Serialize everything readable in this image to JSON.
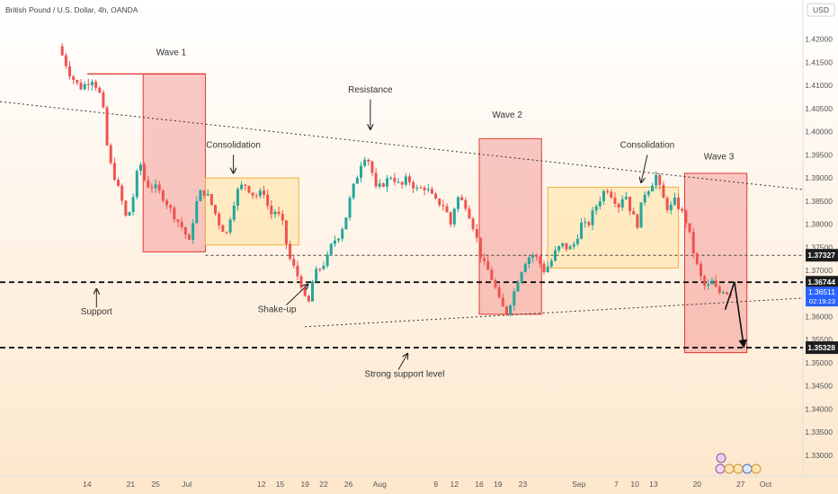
{
  "header": {
    "title": "British Pound / U.S. Dollar, 4h, OANDA",
    "currency": "USD"
  },
  "colors": {
    "bg_top": "#ffffff",
    "bg_bottom": "#fde7cc",
    "up": "#26a69a",
    "down": "#ef5350",
    "red_zone_fill": "#f08080",
    "red_zone_stroke": "#e53935",
    "orange_zone_fill": "#ffe0a0",
    "orange_zone_stroke": "#f5b041",
    "price_label_bg": "#1e1e1e",
    "current_price_bg": "#2962ff"
  },
  "chart_data": {
    "type": "candlestick",
    "instrument": "GBPUSD",
    "timeframe": "4h",
    "y_axis": {
      "range": [
        1.3255,
        1.4285
      ],
      "ticks": [
        "1.42000",
        "1.41500",
        "1.41000",
        "1.40500",
        "1.40000",
        "1.39500",
        "1.39000",
        "1.38500",
        "1.38000",
        "1.37500",
        "1.37000",
        "1.36500",
        "1.36000",
        "1.35500",
        "1.35000",
        "1.34500",
        "1.34000",
        "1.33500",
        "1.33000"
      ]
    },
    "x_axis": {
      "ticks": [
        {
          "label": "14",
          "x": 14
        },
        {
          "label": "21",
          "x": 21
        },
        {
          "label": "25",
          "x": 25
        },
        {
          "label": "Jul",
          "x": 30
        },
        {
          "label": "12",
          "x": 42
        },
        {
          "label": "15",
          "x": 45
        },
        {
          "label": "19",
          "x": 49
        },
        {
          "label": "22",
          "x": 52
        },
        {
          "label": "26",
          "x": 56
        },
        {
          "label": "Aug",
          "x": 61
        },
        {
          "label": "9",
          "x": 70
        },
        {
          "label": "12",
          "x": 73
        },
        {
          "label": "16",
          "x": 77
        },
        {
          "label": "19",
          "x": 80
        },
        {
          "label": "23",
          "x": 84
        },
        {
          "label": "Sep",
          "x": 93
        },
        {
          "label": "7",
          "x": 99
        },
        {
          "label": "10",
          "x": 102
        },
        {
          "label": "13",
          "x": 105
        },
        {
          "label": "20",
          "x": 112
        },
        {
          "label": "27",
          "x": 119
        },
        {
          "label": "Oct",
          "x": 123
        }
      ]
    },
    "price_path": [
      [
        10,
        1.4185
      ],
      [
        12,
        1.412
      ],
      [
        13.5,
        1.4095
      ],
      [
        15.5,
        1.4115
      ],
      [
        17,
        1.407
      ],
      [
        18,
        1.3945
      ],
      [
        20,
        1.386
      ],
      [
        21,
        1.3805
      ],
      [
        22,
        1.386
      ],
      [
        23,
        1.394
      ],
      [
        24,
        1.3885
      ],
      [
        25.5,
        1.388
      ],
      [
        27,
        1.3855
      ],
      [
        28.5,
        1.382
      ],
      [
        30,
        1.379
      ],
      [
        31,
        1.376
      ],
      [
        32,
        1.384
      ],
      [
        33,
        1.3875
      ],
      [
        34,
        1.386
      ],
      [
        35,
        1.383
      ],
      [
        36,
        1.3795
      ],
      [
        37,
        1.378
      ],
      [
        38,
        1.384
      ],
      [
        39,
        1.388
      ],
      [
        40,
        1.3885
      ],
      [
        41.5,
        1.386
      ],
      [
        43,
        1.387
      ],
      [
        44,
        1.382
      ],
      [
        45,
        1.383
      ],
      [
        46,
        1.38
      ],
      [
        47,
        1.373
      ],
      [
        48,
        1.37
      ],
      [
        49,
        1.367
      ],
      [
        50,
        1.3615
      ],
      [
        51,
        1.369
      ],
      [
        52,
        1.3705
      ],
      [
        53,
        1.372
      ],
      [
        54,
        1.376
      ],
      [
        55,
        1.3775
      ],
      [
        56,
        1.3805
      ],
      [
        57,
        1.3865
      ],
      [
        58,
        1.3905
      ],
      [
        59,
        1.395
      ],
      [
        60,
        1.3935
      ],
      [
        61,
        1.3875
      ],
      [
        62,
        1.3885
      ],
      [
        63.5,
        1.3905
      ],
      [
        65,
        1.388
      ],
      [
        66,
        1.39
      ],
      [
        67.5,
        1.3875
      ],
      [
        69,
        1.388
      ],
      [
        70.5,
        1.385
      ],
      [
        72,
        1.384
      ],
      [
        73,
        1.38
      ],
      [
        74,
        1.386
      ],
      [
        75.5,
        1.384
      ],
      [
        77,
        1.378
      ],
      [
        78,
        1.372
      ],
      [
        79,
        1.37
      ],
      [
        80,
        1.367
      ],
      [
        81,
        1.3625
      ],
      [
        82,
        1.361
      ],
      [
        83,
        1.3645
      ],
      [
        84,
        1.369
      ],
      [
        85,
        1.372
      ],
      [
        86,
        1.3735
      ],
      [
        87,
        1.3725
      ],
      [
        88,
        1.37
      ],
      [
        89,
        1.3715
      ],
      [
        90,
        1.3745
      ],
      [
        91,
        1.3755
      ],
      [
        92,
        1.3745
      ],
      [
        93,
        1.376
      ],
      [
        94,
        1.38
      ],
      [
        95,
        1.3795
      ],
      [
        96,
        1.383
      ],
      [
        97,
        1.3855
      ],
      [
        98,
        1.388
      ],
      [
        99,
        1.386
      ],
      [
        100,
        1.384
      ],
      [
        101,
        1.387
      ],
      [
        102,
        1.3825
      ],
      [
        103,
        1.38
      ],
      [
        104,
        1.3865
      ],
      [
        105,
        1.388
      ],
      [
        106,
        1.3905
      ],
      [
        107,
        1.386
      ],
      [
        108,
        1.383
      ],
      [
        109,
        1.385
      ],
      [
        110,
        1.383
      ],
      [
        111,
        1.38
      ],
      [
        112,
        1.374
      ],
      [
        113,
        1.369
      ],
      [
        114,
        1.366
      ],
      [
        115,
        1.3675
      ],
      [
        116,
        1.365
      ],
      [
        117,
        1.366
      ],
      [
        117.5,
        1.3651
      ]
    ],
    "price_labels": [
      {
        "value": 1.37327,
        "text": "1.37327",
        "style": "dark"
      },
      {
        "value": 1.36744,
        "text": "1.36744",
        "style": "dark"
      },
      {
        "value": 1.36511,
        "text": "1.36511",
        "sub": "02:19:23",
        "style": "current"
      },
      {
        "value": 1.35328,
        "text": "1.35328",
        "style": "dark"
      }
    ],
    "zones": [
      {
        "name": "wave-1-zone",
        "kind": "red",
        "x0": 23,
        "x1": 33,
        "y0": 1.4125,
        "y1": 1.374
      },
      {
        "name": "consolidation-zone-1",
        "kind": "orange",
        "x0": 33,
        "x1": 48,
        "y0": 1.39,
        "y1": 1.3755
      },
      {
        "name": "wave-2-zone",
        "kind": "red",
        "x0": 77,
        "x1": 87,
        "y0": 1.3985,
        "y1": 1.3605
      },
      {
        "name": "consolidation-zone-2",
        "kind": "orange",
        "x0": 88,
        "x1": 109,
        "y0": 1.388,
        "y1": 1.3705
      },
      {
        "name": "wave-3-zone",
        "kind": "red",
        "x0": 110,
        "x1": 120,
        "y0": 1.391,
        "y1": 1.3522
      }
    ],
    "lines": [
      {
        "name": "resistance-trendline",
        "style": "dotted",
        "x0": 0,
        "y0": 1.4065,
        "x1": 129,
        "y1": 1.3875
      },
      {
        "name": "support-trendline",
        "style": "dotted",
        "x0": 49,
        "y0": 1.3578,
        "x1": 129,
        "y1": 1.364
      },
      {
        "name": "level-1.37327",
        "style": "dotted-thin",
        "x0": 33,
        "y0": 1.37327,
        "x1": 129,
        "y1": 1.37327
      },
      {
        "name": "level-1.36744",
        "style": "dashed-thick",
        "x0": 0,
        "y0": 1.36744,
        "x1": 129,
        "y1": 1.36744
      },
      {
        "name": "level-1.35328",
        "style": "dashed-thick",
        "x0": 0,
        "y0": 1.35328,
        "x1": 129,
        "y1": 1.35328
      },
      {
        "name": "wave-1-top-line",
        "style": "solid-red",
        "x0": 14,
        "y0": 1.4125,
        "x1": 33,
        "y1": 1.4125
      }
    ],
    "annotations": [
      {
        "name": "wave-1-label",
        "text": "Wave 1",
        "x": 27.5,
        "y": 1.4165
      },
      {
        "name": "resistance-label",
        "text": "Resistance",
        "x": 59.5,
        "y": 1.4085
      },
      {
        "name": "wave-2-label",
        "text": "Wave 2",
        "x": 81.5,
        "y": 1.403
      },
      {
        "name": "consolidation-label-2",
        "text": "Consolidation",
        "x": 104,
        "y": 1.3965
      },
      {
        "name": "wave-3-label",
        "text": "Wave 3",
        "x": 115.5,
        "y": 1.394
      },
      {
        "name": "consolidation-label-1",
        "text": "Consolidation",
        "x": 37.5,
        "y": 1.3965
      },
      {
        "name": "support-label",
        "text": "Support",
        "x": 15.5,
        "y": 1.3605
      },
      {
        "name": "shake-up-label",
        "text": "Shake-up",
        "x": 44.5,
        "y": 1.361
      },
      {
        "name": "strong-support-label",
        "text": "Strong support level",
        "x": 65,
        "y": 1.347
      }
    ],
    "arrows": [
      {
        "name": "consolidation-1-arrow",
        "x0": 37.5,
        "y0": 1.395,
        "x1": 37.5,
        "y1": 1.391
      },
      {
        "name": "resistance-arrow",
        "x0": 59.5,
        "y0": 1.407,
        "x1": 59.5,
        "y1": 1.4005
      },
      {
        "name": "consolidation-2-arrow",
        "x0": 104,
        "y0": 1.395,
        "x1": 103,
        "y1": 1.389
      },
      {
        "name": "support-arrow",
        "x0": 15.5,
        "y0": 1.362,
        "x1": 15.5,
        "y1": 1.366
      },
      {
        "name": "shake-up-arrow",
        "x0": 46,
        "y0": 1.3625,
        "x1": 49.5,
        "y1": 1.367
      },
      {
        "name": "strong-support-arrow",
        "x0": 64,
        "y0": 1.3485,
        "x1": 65.5,
        "y1": 1.352
      }
    ],
    "projection": [
      [
        116.5,
        1.3615
      ],
      [
        118,
        1.3675
      ],
      [
        119.5,
        1.3535
      ]
    ]
  }
}
